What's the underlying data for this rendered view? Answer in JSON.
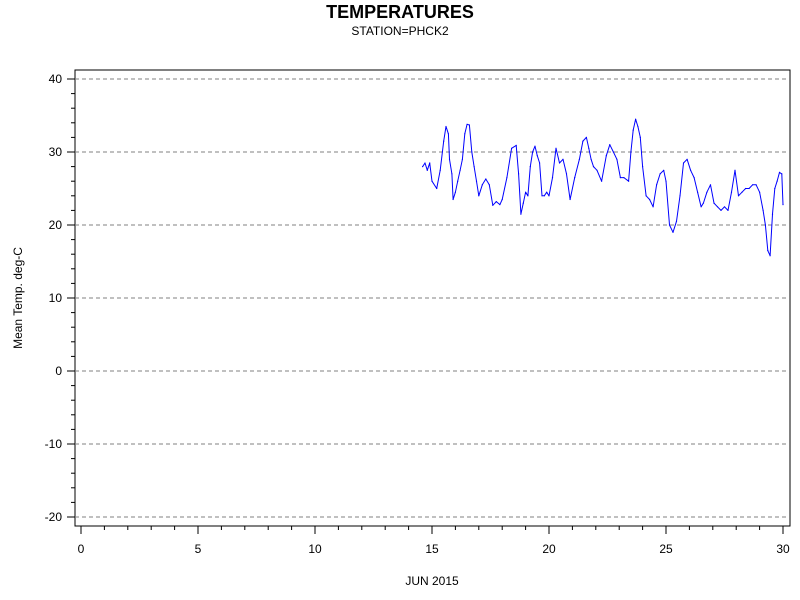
{
  "chart_data": {
    "type": "line",
    "title": "TEMPERATURES",
    "subtitle": "STATION=PHCK2",
    "xlabel": "JUN 2015",
    "ylabel": "Mean Temp. deg-C",
    "xlim": [
      0,
      30
    ],
    "ylim": [
      -20,
      40
    ],
    "x_ticks": [
      0,
      5,
      10,
      15,
      20,
      25,
      30
    ],
    "x_tick_labels": [
      "0",
      "5",
      "10",
      "15",
      "20",
      "25",
      "30"
    ],
    "y_ticks": [
      40,
      30,
      20,
      10,
      0,
      -10,
      -20
    ],
    "y_tick_labels": [
      "40",
      "30",
      "20",
      "10",
      "0",
      "-10",
      "-20"
    ],
    "grid": "horizontal dashed",
    "line_color": "#0000ff",
    "series": [
      {
        "x": [
          14.6,
          14.7,
          14.8,
          14.9,
          15.0,
          15.2,
          15.35,
          15.5,
          15.6,
          15.7,
          15.75,
          15.85,
          15.9,
          16.0,
          16.1,
          16.2,
          16.3,
          16.4,
          16.5,
          16.6,
          16.7,
          16.8,
          16.9,
          17.0,
          17.15,
          17.3,
          17.45,
          17.6,
          17.75,
          17.9,
          18.0,
          18.2,
          18.4,
          18.6,
          18.7,
          18.8,
          18.9,
          19.0,
          19.1,
          19.2,
          19.3,
          19.4,
          19.5,
          19.6,
          19.7,
          19.8,
          19.9,
          20.0,
          20.15,
          20.3,
          20.45,
          20.6,
          20.75,
          20.9,
          21.1,
          21.3,
          21.45,
          21.6,
          21.7,
          21.8,
          21.9,
          22.05,
          22.25,
          22.45,
          22.6,
          22.75,
          22.9,
          23.05,
          23.2,
          23.4,
          23.5,
          23.6,
          23.7,
          23.8,
          23.9,
          24.0,
          24.15,
          24.3,
          24.45,
          24.6,
          24.75,
          24.9,
          25.0,
          25.15,
          25.3,
          25.45,
          25.6,
          25.75,
          25.9,
          26.05,
          26.2,
          26.35,
          26.5,
          26.6,
          26.75,
          26.9,
          27.05,
          27.2,
          27.35,
          27.5,
          27.65,
          27.8,
          27.95,
          28.1,
          28.25,
          28.4,
          28.55,
          28.7,
          28.85,
          29.0,
          29.15,
          29.25,
          29.35,
          29.45,
          29.55,
          29.65,
          29.75,
          29.85,
          29.95,
          30.0
        ],
        "y": [
          28.0,
          28.5,
          27.5,
          28.5,
          26.0,
          25.0,
          27.5,
          31.5,
          33.5,
          32.5,
          29.0,
          27.0,
          23.5,
          24.5,
          26.0,
          27.5,
          29.0,
          32.5,
          33.8,
          33.7,
          30.0,
          28.0,
          26.0,
          24.0,
          25.5,
          26.3,
          25.5,
          22.7,
          23.2,
          22.8,
          23.5,
          26.5,
          30.5,
          30.9,
          27.0,
          21.5,
          23.0,
          24.5,
          24.0,
          28.0,
          30.0,
          30.8,
          29.5,
          28.5,
          24.0,
          24.0,
          24.5,
          24.0,
          26.5,
          30.5,
          28.5,
          29.0,
          27.0,
          23.5,
          26.5,
          29.0,
          31.5,
          32.0,
          30.5,
          29.0,
          28.0,
          27.5,
          26.0,
          29.5,
          31.0,
          30.0,
          29.0,
          26.5,
          26.5,
          26.0,
          30.0,
          33.0,
          34.5,
          33.5,
          32.0,
          28.0,
          24.0,
          23.5,
          22.5,
          25.5,
          27.0,
          27.5,
          26.0,
          20.0,
          19.0,
          20.5,
          24.0,
          28.5,
          29.0,
          27.5,
          26.5,
          24.5,
          22.5,
          23.0,
          24.5,
          25.5,
          23.0,
          22.5,
          22.0,
          22.5,
          22.0,
          24.5,
          27.5,
          24.0,
          24.5,
          25.0,
          25.0,
          25.5,
          25.5,
          24.5,
          22.0,
          20.0,
          16.5,
          15.8,
          21.5,
          25.0,
          26.0,
          27.2,
          27.0,
          22.8
        ]
      }
    ]
  }
}
